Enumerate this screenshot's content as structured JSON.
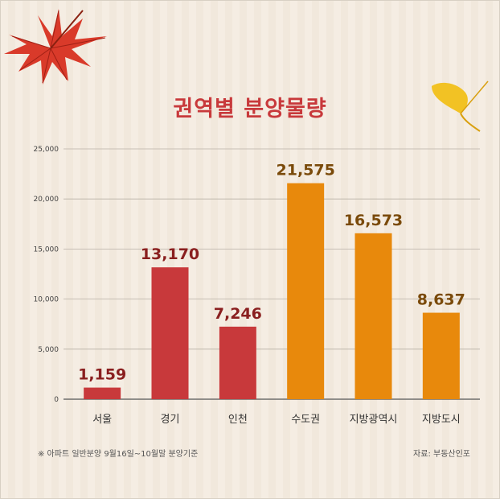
{
  "title": "권역별 분양물량",
  "footnote": "※ 아파트 일반분양 9월16일~10월말 분양기준",
  "source": "자료: 부동산인포",
  "colors": {
    "red": "#c8393b",
    "orange": "#e8890c",
    "red_label": "#8a1f1f",
    "orange_label": "#7a4a0a",
    "title": "#c8393b"
  },
  "chart_data": {
    "type": "bar",
    "categories": [
      "서울",
      "경기",
      "인천",
      "수도권",
      "지방광역시",
      "지방도시"
    ],
    "values": [
      1159,
      13170,
      7246,
      21575,
      16573,
      8637
    ],
    "value_labels": [
      "1,159",
      "13,170",
      "7,246",
      "21,575",
      "16,573",
      "8,637"
    ],
    "bar_colors": [
      "red",
      "red",
      "red",
      "orange",
      "orange",
      "orange"
    ],
    "ylim": [
      0,
      25000
    ],
    "yticks": [
      0,
      5000,
      10000,
      15000,
      20000,
      25000
    ],
    "ytick_labels": [
      "0",
      "5,000",
      "10,000",
      "15,000",
      "20,000",
      "25,000"
    ],
    "grid": true
  }
}
